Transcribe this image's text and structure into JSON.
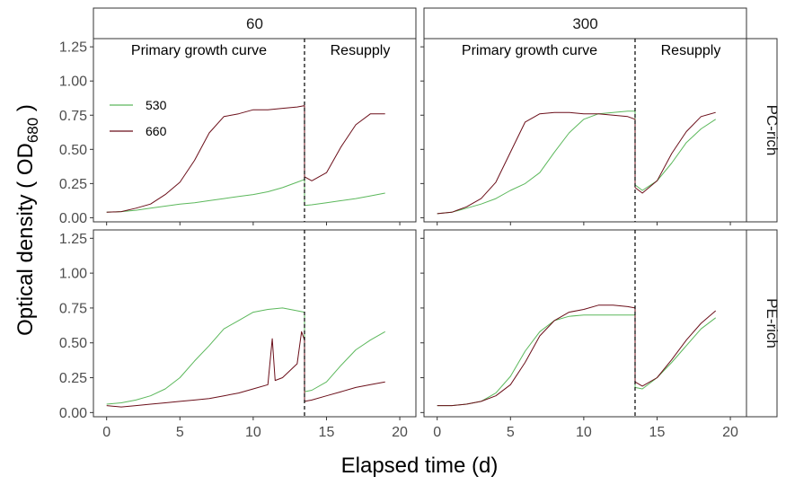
{
  "chart_data": {
    "type": "line",
    "xlabel": "Elapsed time (d)",
    "ylabel": "Optical density ( OD680 )",
    "ylabel_parts": {
      "main": "Optical density ( OD",
      "sub": "680",
      "end": " )"
    },
    "xlim": [
      -0.9,
      21.1
    ],
    "ylim": [
      -0.03,
      1.31
    ],
    "xticks": [
      0,
      5,
      10,
      15,
      20
    ],
    "yticks": [
      "0.00",
      "0.25",
      "0.50",
      "0.75",
      "1.00",
      "1.25"
    ],
    "grid": false,
    "col_facets": [
      "60",
      "300"
    ],
    "row_facets": [
      "PC-rich",
      "PE-rich"
    ],
    "annotations": {
      "left": "Primary growth curve",
      "right": "Resupply"
    },
    "resupply_day": 13.5,
    "legend": {
      "placement": "inside-top-left",
      "entries": [
        "530",
        "660"
      ]
    },
    "colors": {
      "530": "#5cb85c",
      "660": "#6b0f1a"
    },
    "panels": [
      {
        "col": "60",
        "row": "PC-rich",
        "series": [
          {
            "name": "530",
            "x": [
              0,
              1,
              2,
              3,
              4,
              5,
              6,
              7,
              8,
              9,
              10,
              11,
              12,
              13,
              13.5,
              13.5,
              14,
              15,
              16,
              17,
              18,
              19
            ],
            "y": [
              0.04,
              0.045,
              0.055,
              0.07,
              0.085,
              0.1,
              0.11,
              0.125,
              0.14,
              0.155,
              0.17,
              0.19,
              0.22,
              0.26,
              0.28,
              0.09,
              0.095,
              0.11,
              0.125,
              0.14,
              0.16,
              0.18
            ]
          },
          {
            "name": "660",
            "x": [
              0,
              1,
              2,
              3,
              4,
              5,
              6,
              7,
              8,
              9,
              10,
              11,
              12,
              13,
              13.5,
              13.5,
              14,
              15,
              16,
              17,
              18,
              19
            ],
            "y": [
              0.04,
              0.045,
              0.07,
              0.1,
              0.17,
              0.26,
              0.42,
              0.62,
              0.74,
              0.76,
              0.79,
              0.79,
              0.8,
              0.81,
              0.82,
              0.3,
              0.27,
              0.33,
              0.52,
              0.68,
              0.76,
              0.76
            ]
          }
        ]
      },
      {
        "col": "300",
        "row": "PC-rich",
        "series": [
          {
            "name": "530",
            "x": [
              0,
              1,
              2,
              3,
              4,
              5,
              6,
              7,
              8,
              9,
              10,
              11,
              12,
              13,
              13.5,
              13.5,
              14,
              15,
              16,
              17,
              18,
              19
            ],
            "y": [
              0.03,
              0.04,
              0.07,
              0.1,
              0.14,
              0.2,
              0.25,
              0.33,
              0.48,
              0.62,
              0.72,
              0.76,
              0.77,
              0.78,
              0.78,
              0.24,
              0.2,
              0.27,
              0.4,
              0.55,
              0.65,
              0.72
            ]
          },
          {
            "name": "660",
            "x": [
              0,
              1,
              2,
              3,
              4,
              5,
              6,
              7,
              8,
              9,
              10,
              11,
              12,
              13,
              13.5,
              13.5,
              14,
              15,
              16,
              17,
              18,
              19
            ],
            "y": [
              0.03,
              0.04,
              0.08,
              0.14,
              0.26,
              0.48,
              0.7,
              0.76,
              0.77,
              0.77,
              0.76,
              0.76,
              0.75,
              0.74,
              0.72,
              0.22,
              0.18,
              0.27,
              0.47,
              0.63,
              0.74,
              0.77
            ]
          }
        ]
      },
      {
        "col": "60",
        "row": "PE-rich",
        "series": [
          {
            "name": "530",
            "x": [
              0,
              1,
              2,
              3,
              4,
              5,
              6,
              7,
              8,
              9,
              10,
              11,
              12,
              13,
              13.5,
              13.5,
              14,
              15,
              16,
              17,
              18,
              19
            ],
            "y": [
              0.06,
              0.07,
              0.09,
              0.12,
              0.17,
              0.25,
              0.37,
              0.48,
              0.6,
              0.66,
              0.72,
              0.74,
              0.75,
              0.73,
              0.72,
              0.15,
              0.16,
              0.22,
              0.34,
              0.45,
              0.52,
              0.58
            ]
          },
          {
            "name": "660",
            "x": [
              0,
              1,
              2,
              3,
              4,
              5,
              6,
              7,
              8,
              9,
              10,
              11,
              11.3,
              11.5,
              12,
              13,
              13.3,
              13.5,
              13.5,
              14,
              15,
              16,
              17,
              18,
              19
            ],
            "y": [
              0.05,
              0.04,
              0.05,
              0.06,
              0.07,
              0.08,
              0.09,
              0.1,
              0.12,
              0.14,
              0.17,
              0.2,
              0.53,
              0.23,
              0.25,
              0.35,
              0.58,
              0.52,
              0.08,
              0.09,
              0.12,
              0.15,
              0.18,
              0.2,
              0.22
            ]
          }
        ]
      },
      {
        "col": "300",
        "row": "PE-rich",
        "series": [
          {
            "name": "530",
            "x": [
              0,
              1,
              2,
              3,
              4,
              5,
              6,
              7,
              8,
              9,
              10,
              11,
              12,
              13,
              13.5,
              13.5,
              14,
              15,
              16,
              17,
              18,
              19
            ],
            "y": [
              0.05,
              0.05,
              0.06,
              0.08,
              0.14,
              0.26,
              0.44,
              0.58,
              0.66,
              0.69,
              0.7,
              0.7,
              0.7,
              0.7,
              0.7,
              0.18,
              0.17,
              0.25,
              0.36,
              0.48,
              0.6,
              0.68
            ]
          },
          {
            "name": "660",
            "x": [
              0,
              1,
              2,
              3,
              4,
              5,
              6,
              7,
              8,
              9,
              10,
              11,
              12,
              13,
              13.5,
              13.5,
              14,
              15,
              16,
              17,
              18,
              19
            ],
            "y": [
              0.05,
              0.05,
              0.06,
              0.08,
              0.12,
              0.2,
              0.36,
              0.55,
              0.66,
              0.72,
              0.74,
              0.77,
              0.77,
              0.76,
              0.75,
              0.22,
              0.19,
              0.25,
              0.38,
              0.52,
              0.64,
              0.73
            ]
          }
        ]
      }
    ]
  }
}
